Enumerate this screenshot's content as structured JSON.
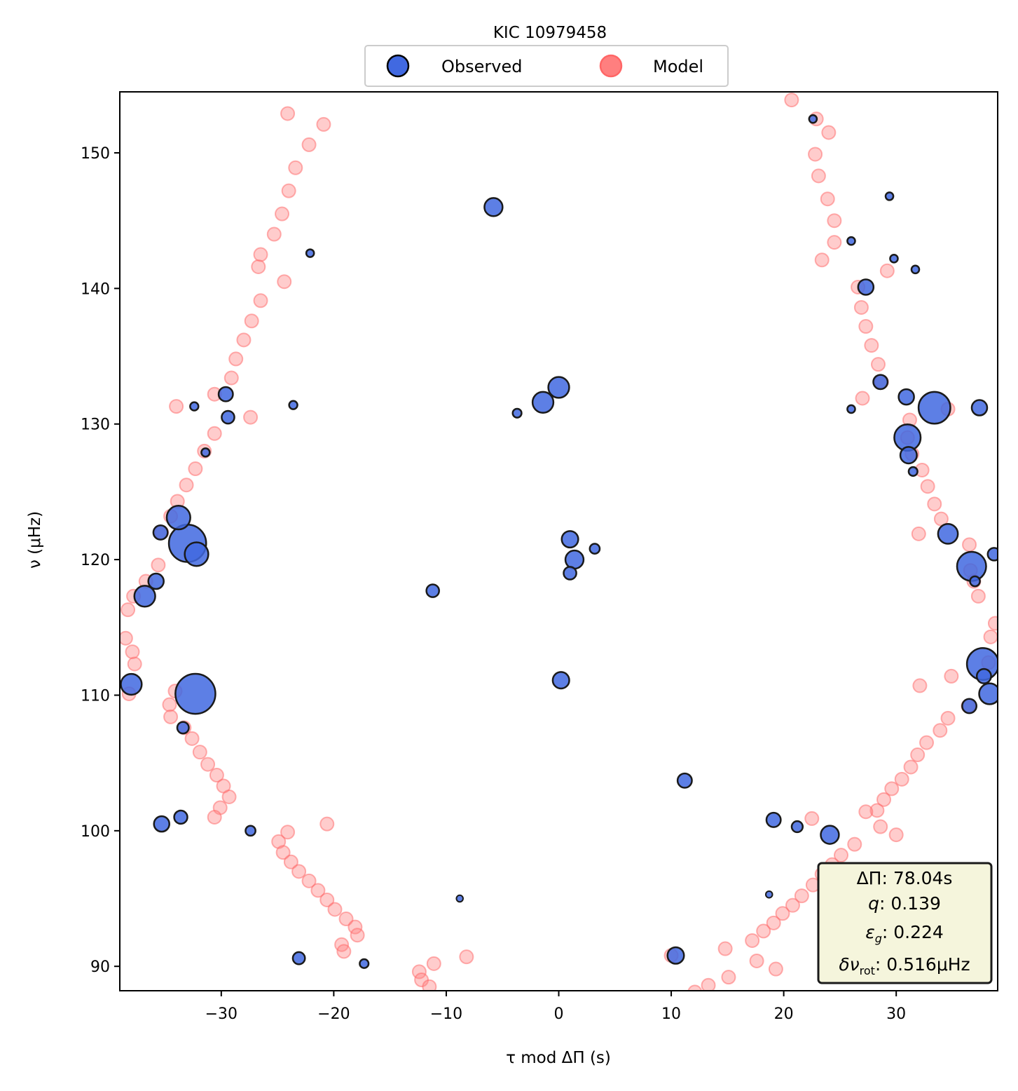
{
  "chart_data": {
    "type": "scatter",
    "title": "KIC 10979458",
    "xlabel": "τ mod ΔΠ (s)",
    "ylabel": "ν (μHz)",
    "xlim": [
      -39.02,
      39.02
    ],
    "ylim": [
      88.2,
      154.5
    ],
    "xticks": [
      -30,
      -20,
      -10,
      0,
      10,
      20,
      30
    ],
    "yticks": [
      90,
      100,
      110,
      120,
      130,
      140,
      150
    ],
    "xtick_labels": [
      "−30",
      "−20",
      "−10",
      "0",
      "10",
      "20",
      "30"
    ],
    "ytick_labels": [
      "90",
      "100",
      "110",
      "120",
      "130",
      "140",
      "150"
    ],
    "grid": false,
    "legend": {
      "placement": "above-center",
      "entries": [
        "Observed",
        "Model"
      ]
    },
    "colors": {
      "observed_fill": "#4169e1",
      "observed_edge": "#000000",
      "model_fill": "#ff7f7f",
      "model_edge": "#ff6666",
      "param_box_bg": "#f5f5dc"
    },
    "parameters": {
      "line1": "ΔΠ: 78.04s",
      "line2_sym": "q",
      "line2_val": ":  0.139",
      "line3_sym": "ε",
      "line3_sub": "g",
      "line3_val": ": 0.224",
      "line4_sym": "δν",
      "line4_sub": "rot",
      "line4_val": ": 0.516μHz"
    },
    "series": [
      {
        "name": "Observed",
        "marker_size_note": "relative size s: larger = stronger mode",
        "points": [
          {
            "x": -5.8,
            "y": 146.0,
            "s": 2.5
          },
          {
            "x": -22.1,
            "y": 142.6,
            "s": 0.6
          },
          {
            "x": 26.0,
            "y": 143.5,
            "s": 0.6
          },
          {
            "x": 29.4,
            "y": 146.8,
            "s": 0.6
          },
          {
            "x": 29.8,
            "y": 142.2,
            "s": 0.6
          },
          {
            "x": 31.7,
            "y": 141.4,
            "s": 0.6
          },
          {
            "x": 27.3,
            "y": 140.1,
            "s": 2.0
          },
          {
            "x": 0.0,
            "y": 132.7,
            "s": 3.0
          },
          {
            "x": -1.4,
            "y": 131.6,
            "s": 3.0
          },
          {
            "x": -3.7,
            "y": 130.8,
            "s": 0.8
          },
          {
            "x": -29.6,
            "y": 132.2,
            "s": 1.8
          },
          {
            "x": -32.4,
            "y": 131.3,
            "s": 0.7
          },
          {
            "x": -23.6,
            "y": 131.4,
            "s": 0.7
          },
          {
            "x": -29.4,
            "y": 130.5,
            "s": 1.5
          },
          {
            "x": -31.4,
            "y": 127.9,
            "s": 0.7
          },
          {
            "x": 28.6,
            "y": 133.1,
            "s": 1.8
          },
          {
            "x": 30.9,
            "y": 132.0,
            "s": 2.0
          },
          {
            "x": 26.0,
            "y": 131.1,
            "s": 0.6
          },
          {
            "x": 33.4,
            "y": 131.2,
            "s": 5.0
          },
          {
            "x": 37.4,
            "y": 131.2,
            "s": 2.0
          },
          {
            "x": 31.0,
            "y": 129.0,
            "s": 4.0
          },
          {
            "x": 31.1,
            "y": 127.7,
            "s": 2.2
          },
          {
            "x": 31.5,
            "y": 126.5,
            "s": 0.8
          },
          {
            "x": -33.8,
            "y": 123.1,
            "s": 3.5
          },
          {
            "x": -35.4,
            "y": 122.0,
            "s": 1.8
          },
          {
            "x": -33.0,
            "y": 121.2,
            "s": 6.0
          },
          {
            "x": -32.2,
            "y": 120.4,
            "s": 3.5
          },
          {
            "x": -35.8,
            "y": 118.4,
            "s": 2.0
          },
          {
            "x": -36.8,
            "y": 117.3,
            "s": 3.0
          },
          {
            "x": 1.0,
            "y": 121.5,
            "s": 2.2
          },
          {
            "x": 3.2,
            "y": 120.8,
            "s": 1.0
          },
          {
            "x": 1.4,
            "y": 120.0,
            "s": 2.5
          },
          {
            "x": 1.0,
            "y": 119.0,
            "s": 1.5
          },
          {
            "x": -11.2,
            "y": 117.7,
            "s": 1.5
          },
          {
            "x": 34.6,
            "y": 121.9,
            "s": 2.8
          },
          {
            "x": 36.7,
            "y": 119.5,
            "s": 4.5
          },
          {
            "x": 37.0,
            "y": 118.4,
            "s": 1.0
          },
          {
            "x": 38.7,
            "y": 120.4,
            "s": 1.5
          },
          {
            "x": -38.0,
            "y": 110.8,
            "s": 3.0
          },
          {
            "x": -32.3,
            "y": 110.1,
            "s": 6.5
          },
          {
            "x": -33.4,
            "y": 107.6,
            "s": 1.3
          },
          {
            "x": 0.2,
            "y": 111.1,
            "s": 2.2
          },
          {
            "x": 37.7,
            "y": 112.3,
            "s": 5.0
          },
          {
            "x": 37.8,
            "y": 111.4,
            "s": 1.8
          },
          {
            "x": 38.3,
            "y": 110.1,
            "s": 3.0
          },
          {
            "x": 36.5,
            "y": 109.2,
            "s": 1.8
          },
          {
            "x": 11.2,
            "y": 103.7,
            "s": 1.8
          },
          {
            "x": -35.3,
            "y": 100.5,
            "s": 2.0
          },
          {
            "x": -33.6,
            "y": 101.0,
            "s": 1.6
          },
          {
            "x": -27.4,
            "y": 100.0,
            "s": 1.0
          },
          {
            "x": 19.1,
            "y": 100.8,
            "s": 1.8
          },
          {
            "x": 21.2,
            "y": 100.3,
            "s": 1.2
          },
          {
            "x": 24.1,
            "y": 99.7,
            "s": 2.5
          },
          {
            "x": -8.8,
            "y": 95.0,
            "s": 0.4
          },
          {
            "x": 18.7,
            "y": 95.3,
            "s": 0.4
          },
          {
            "x": -23.1,
            "y": 90.6,
            "s": 1.4
          },
          {
            "x": -17.3,
            "y": 90.2,
            "s": 0.8
          },
          {
            "x": 10.4,
            "y": 90.8,
            "s": 2.2
          },
          {
            "x": 22.6,
            "y": 152.5,
            "s": 0.6
          }
        ]
      },
      {
        "name": "Model",
        "points": [
          {
            "x": -24.1,
            "y": 152.9
          },
          {
            "x": -20.9,
            "y": 152.1
          },
          {
            "x": -22.2,
            "y": 150.6
          },
          {
            "x": -23.4,
            "y": 148.9
          },
          {
            "x": -24.0,
            "y": 147.2
          },
          {
            "x": -24.6,
            "y": 145.5
          },
          {
            "x": -25.3,
            "y": 144.0
          },
          {
            "x": -26.5,
            "y": 142.5
          },
          {
            "x": -26.7,
            "y": 141.6
          },
          {
            "x": -24.4,
            "y": 140.5
          },
          {
            "x": -26.5,
            "y": 139.1
          },
          {
            "x": -27.3,
            "y": 137.6
          },
          {
            "x": -28.0,
            "y": 136.2
          },
          {
            "x": -28.7,
            "y": 134.8
          },
          {
            "x": -29.1,
            "y": 133.4
          },
          {
            "x": -30.6,
            "y": 132.2
          },
          {
            "x": -34.0,
            "y": 131.3
          },
          {
            "x": -27.4,
            "y": 130.5
          },
          {
            "x": -30.6,
            "y": 129.3
          },
          {
            "x": -31.5,
            "y": 128.0
          },
          {
            "x": -32.3,
            "y": 126.7
          },
          {
            "x": -33.1,
            "y": 125.5
          },
          {
            "x": -33.9,
            "y": 124.3
          },
          {
            "x": -34.5,
            "y": 123.2
          },
          {
            "x": -35.3,
            "y": 122.0
          },
          {
            "x": -35.6,
            "y": 119.6
          },
          {
            "x": -36.7,
            "y": 118.4
          },
          {
            "x": -37.8,
            "y": 117.3
          },
          {
            "x": -38.3,
            "y": 116.3
          },
          {
            "x": -38.5,
            "y": 114.2
          },
          {
            "x": -37.9,
            "y": 113.2
          },
          {
            "x": -37.7,
            "y": 112.3
          },
          {
            "x": -38.2,
            "y": 110.1
          },
          {
            "x": -34.1,
            "y": 110.3
          },
          {
            "x": -34.6,
            "y": 109.3
          },
          {
            "x": -34.5,
            "y": 108.4
          },
          {
            "x": -33.3,
            "y": 107.6
          },
          {
            "x": -32.6,
            "y": 106.8
          },
          {
            "x": -31.9,
            "y": 105.8
          },
          {
            "x": -31.2,
            "y": 104.9
          },
          {
            "x": -30.4,
            "y": 104.1
          },
          {
            "x": -29.8,
            "y": 103.3
          },
          {
            "x": -29.3,
            "y": 102.5
          },
          {
            "x": -30.1,
            "y": 101.7
          },
          {
            "x": -30.6,
            "y": 101.0
          },
          {
            "x": -20.6,
            "y": 100.5
          },
          {
            "x": -24.1,
            "y": 99.9
          },
          {
            "x": -24.9,
            "y": 99.2
          },
          {
            "x": -24.5,
            "y": 98.4
          },
          {
            "x": -23.8,
            "y": 97.7
          },
          {
            "x": -23.1,
            "y": 97.0
          },
          {
            "x": -22.2,
            "y": 96.3
          },
          {
            "x": -21.4,
            "y": 95.6
          },
          {
            "x": -20.6,
            "y": 94.9
          },
          {
            "x": -19.9,
            "y": 94.2
          },
          {
            "x": -18.9,
            "y": 93.5
          },
          {
            "x": -18.1,
            "y": 92.9
          },
          {
            "x": -17.9,
            "y": 92.3
          },
          {
            "x": -19.3,
            "y": 91.6
          },
          {
            "x": -19.1,
            "y": 91.1
          },
          {
            "x": -11.1,
            "y": 90.2
          },
          {
            "x": -8.2,
            "y": 90.7
          },
          {
            "x": -12.4,
            "y": 89.6
          },
          {
            "x": -12.2,
            "y": 89.0
          },
          {
            "x": -11.5,
            "y": 88.5
          },
          {
            "x": 20.7,
            "y": 153.9
          },
          {
            "x": 22.9,
            "y": 152.5
          },
          {
            "x": 24.0,
            "y": 151.5
          },
          {
            "x": 22.8,
            "y": 149.9
          },
          {
            "x": 23.1,
            "y": 148.3
          },
          {
            "x": 23.9,
            "y": 146.6
          },
          {
            "x": 24.5,
            "y": 145.0
          },
          {
            "x": 24.5,
            "y": 143.4
          },
          {
            "x": 23.4,
            "y": 142.1
          },
          {
            "x": 29.2,
            "y": 141.3
          },
          {
            "x": 26.6,
            "y": 140.1
          },
          {
            "x": 26.9,
            "y": 138.6
          },
          {
            "x": 27.3,
            "y": 137.2
          },
          {
            "x": 27.8,
            "y": 135.8
          },
          {
            "x": 28.4,
            "y": 134.4
          },
          {
            "x": 28.7,
            "y": 133.1
          },
          {
            "x": 27.0,
            "y": 131.9
          },
          {
            "x": 34.6,
            "y": 131.1
          },
          {
            "x": 31.2,
            "y": 130.3
          },
          {
            "x": 31.0,
            "y": 129.0
          },
          {
            "x": 31.4,
            "y": 127.8
          },
          {
            "x": 32.3,
            "y": 126.6
          },
          {
            "x": 32.8,
            "y": 125.4
          },
          {
            "x": 33.4,
            "y": 124.1
          },
          {
            "x": 34.0,
            "y": 123.0
          },
          {
            "x": 32.0,
            "y": 121.9
          },
          {
            "x": 36.5,
            "y": 121.1
          },
          {
            "x": 36.6,
            "y": 119.2
          },
          {
            "x": 36.9,
            "y": 118.4
          },
          {
            "x": 37.3,
            "y": 117.3
          },
          {
            "x": 38.8,
            "y": 115.3
          },
          {
            "x": 38.4,
            "y": 114.3
          },
          {
            "x": 38.2,
            "y": 112.4
          },
          {
            "x": 34.9,
            "y": 111.4
          },
          {
            "x": 32.1,
            "y": 110.7
          },
          {
            "x": 36.4,
            "y": 109.2
          },
          {
            "x": 34.6,
            "y": 108.3
          },
          {
            "x": 33.9,
            "y": 107.4
          },
          {
            "x": 32.7,
            "y": 106.5
          },
          {
            "x": 31.9,
            "y": 105.6
          },
          {
            "x": 31.3,
            "y": 104.7
          },
          {
            "x": 30.5,
            "y": 103.8
          },
          {
            "x": 29.6,
            "y": 103.1
          },
          {
            "x": 28.9,
            "y": 102.3
          },
          {
            "x": 28.3,
            "y": 101.5
          },
          {
            "x": 27.3,
            "y": 101.4
          },
          {
            "x": 22.5,
            "y": 100.9
          },
          {
            "x": 28.6,
            "y": 100.3
          },
          {
            "x": 30.0,
            "y": 99.7
          },
          {
            "x": 26.3,
            "y": 99.0
          },
          {
            "x": 25.1,
            "y": 98.2
          },
          {
            "x": 24.3,
            "y": 97.5
          },
          {
            "x": 23.4,
            "y": 96.8
          },
          {
            "x": 22.6,
            "y": 96.0
          },
          {
            "x": 21.6,
            "y": 95.2
          },
          {
            "x": 20.8,
            "y": 94.5
          },
          {
            "x": 19.9,
            "y": 93.9
          },
          {
            "x": 19.1,
            "y": 93.2
          },
          {
            "x": 18.2,
            "y": 92.6
          },
          {
            "x": 17.2,
            "y": 91.9
          },
          {
            "x": 14.8,
            "y": 91.3
          },
          {
            "x": 10.0,
            "y": 90.8
          },
          {
            "x": 17.6,
            "y": 90.4
          },
          {
            "x": 19.3,
            "y": 89.8
          },
          {
            "x": 15.1,
            "y": 89.2
          },
          {
            "x": 13.3,
            "y": 88.6
          },
          {
            "x": 12.1,
            "y": 88.1
          }
        ]
      }
    ]
  }
}
